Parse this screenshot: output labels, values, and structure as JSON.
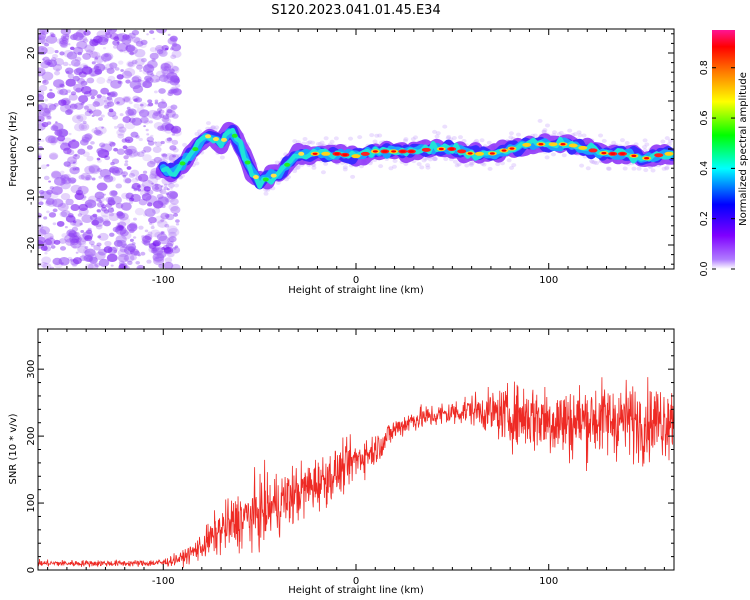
{
  "figure_title": "S120.2023.041.01.45.E34",
  "chart_data": [
    {
      "type": "heatmap",
      "xlabel": "Height of straight line (km)",
      "ylabel": "Frequency (Hz)",
      "xlim": [
        -165,
        165
      ],
      "ylim": [
        -25,
        25
      ],
      "xticks": [
        -100,
        0,
        100
      ],
      "yticks": [
        -20,
        -10,
        0,
        10,
        20
      ],
      "colorbar": {
        "label": "Normalized spectral amplitude",
        "range": [
          0,
          0.95
        ],
        "ticks": [
          "0.0",
          "0.2",
          "0.4",
          "0.6",
          "0.8"
        ],
        "colors": [
          "#ffffff",
          "#7f00ff",
          "#0000ff",
          "#00ffff",
          "#00ff00",
          "#ffff00",
          "#ff7f00",
          "#ff0000",
          "#ff1493"
        ]
      },
      "ridge": {
        "x": [
          -100,
          -95,
          -90,
          -85,
          -80,
          -75,
          -70,
          -65,
          -60,
          -55,
          -50,
          -45,
          -40,
          -35,
          -30,
          -25,
          -20,
          -10,
          0,
          10,
          20,
          30,
          40,
          50,
          60,
          70,
          80,
          90,
          100,
          110,
          120,
          130,
          140,
          150,
          160,
          165
        ],
        "y": [
          -4,
          -5,
          -3,
          -1,
          2,
          3,
          1,
          4,
          1,
          -4,
          -7,
          -6,
          -5,
          -3,
          -1,
          -1,
          -1,
          -1,
          -1.5,
          -0.5,
          -0.5,
          -0.5,
          0,
          0,
          -1,
          -1,
          0,
          1,
          1,
          1,
          0,
          -1,
          -1,
          -2,
          -1,
          -1
        ]
      }
    },
    {
      "type": "line",
      "xlabel": "Height of straight line (km)",
      "ylabel": "SNR (10 * v/v)",
      "xlim": [
        -165,
        165
      ],
      "ylim": [
        0,
        360
      ],
      "xticks": [
        -100,
        0,
        100
      ],
      "yticks": [
        0,
        100,
        200,
        300
      ],
      "series_color": "#ee2a24",
      "envelope": {
        "x": [
          -165,
          -150,
          -130,
          -110,
          -100,
          -90,
          -80,
          -70,
          -60,
          -50,
          -40,
          -30,
          -20,
          -10,
          0,
          10,
          20,
          30,
          40,
          50,
          60,
          70,
          80,
          90,
          100,
          110,
          120,
          130,
          140,
          150,
          160,
          165
        ],
        "mean": [
          10,
          10,
          10,
          10,
          11,
          18,
          35,
          60,
          75,
          85,
          100,
          115,
          130,
          145,
          165,
          180,
          210,
          225,
          230,
          235,
          240,
          235,
          230,
          230,
          225,
          220,
          225,
          225,
          225,
          220,
          225,
          230
        ],
        "spread": [
          6,
          6,
          6,
          6,
          8,
          12,
          25,
          45,
          55,
          65,
          60,
          55,
          50,
          45,
          40,
          30,
          22,
          22,
          22,
          25,
          28,
          40,
          55,
          65,
          70,
          70,
          70,
          70,
          70,
          70,
          70,
          65
        ]
      }
    }
  ]
}
